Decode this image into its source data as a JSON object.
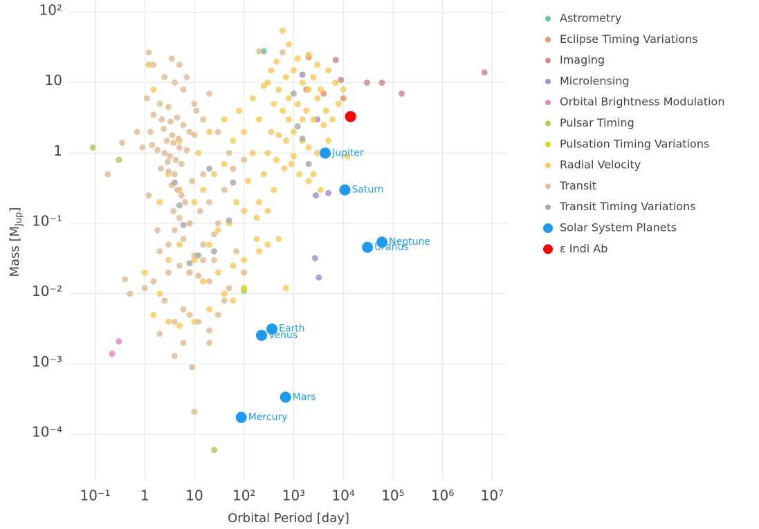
{
  "chart_data": {
    "type": "scatter",
    "xlabel": "Orbital Period [day]",
    "ylabel_parts": [
      "Mass [M",
      "Jup",
      "]"
    ],
    "xscale": "log",
    "yscale": "log",
    "grid": true,
    "legend": "right",
    "xlim": [
      0.03,
      20000000
    ],
    "ylim": [
      2.2e-05,
      150
    ],
    "xticks": [
      {
        "value": 0.1,
        "label": "10⁻¹"
      },
      1,
      10,
      {
        "value": 100,
        "label": "10²"
      },
      {
        "value": 1000,
        "label": "10³"
      },
      {
        "value": 10000,
        "label": "10⁴"
      },
      {
        "value": 100000,
        "label": "10⁵"
      },
      {
        "value": 1000000,
        "label": "10⁶"
      },
      {
        "value": 10000000,
        "label": "10⁷"
      }
    ],
    "yticks": [
      {
        "value": 0.0001,
        "label": "10⁻⁴"
      },
      {
        "value": 0.001,
        "label": "10⁻³"
      },
      {
        "value": 0.01,
        "label": "10⁻²"
      },
      {
        "value": 0.1,
        "label": "10⁻¹"
      },
      1,
      10,
      {
        "value": 100,
        "label": "10²"
      }
    ],
    "series": [
      {
        "name": "Astrometry",
        "color": "#66c2a5",
        "x": [
          250
        ],
        "values": [
          28
        ]
      },
      {
        "name": "Eclipse Timing Variations",
        "color": "#e8936a",
        "x": [
          2000,
          4000,
          10000,
          1800
        ],
        "values": [
          23,
          7,
          6,
          8
        ]
      },
      {
        "name": "Imaging",
        "color": "#c98a8f",
        "x": [
          7000,
          30000,
          60000,
          150000,
          7000000,
          9000
        ],
        "values": [
          21,
          10,
          10,
          7,
          14,
          11
        ]
      },
      {
        "name": "Microlensing",
        "color": "#a593c8",
        "x": [
          2800,
          5000,
          2700,
          3200,
          1500,
          3000
        ],
        "values": [
          0.25,
          0.27,
          0.032,
          0.017,
          13,
          3
        ]
      },
      {
        "name": "Orbital Brightness Modulation",
        "color": "#e08bc0",
        "x": [
          0.22,
          0.3
        ],
        "values": [
          0.0014,
          0.0021
        ]
      },
      {
        "name": "Pulsar Timing",
        "color": "#a5d05a",
        "x": [
          0.09,
          0.3,
          25,
          100
        ],
        "values": [
          1.2,
          0.8,
          6e-05,
          0.011
        ]
      },
      {
        "name": "Pulsation Timing Variations",
        "color": "#d9d62a",
        "x": [
          100
        ],
        "values": [
          0.012
        ]
      },
      {
        "name": "Radial Velocity",
        "color": "#f5cd5f",
        "x": [
          300,
          500,
          700,
          1000,
          1500,
          2000,
          3000,
          400,
          600,
          800,
          1200,
          1800,
          2500,
          4000,
          350,
          500,
          700,
          1000,
          1500,
          2000,
          3000,
          5000,
          300,
          450,
          650,
          900,
          1300,
          2000,
          3500,
          250,
          150,
          100,
          80,
          60,
          200,
          150,
          250,
          450,
          600,
          800,
          1200,
          2000,
          3000,
          5000,
          7000,
          10000,
          8000,
          6000,
          400,
          200,
          100,
          50,
          30,
          20,
          10,
          8,
          15,
          30,
          60,
          100,
          200,
          300,
          500,
          700,
          60,
          40,
          20,
          10,
          5,
          3,
          1.5,
          2,
          3,
          5,
          8,
          10,
          5,
          3,
          2,
          1,
          15,
          25,
          40,
          70,
          120,
          180,
          300,
          1.2,
          1.5,
          5,
          20,
          40,
          12,
          1000,
          1500,
          2500,
          3500,
          4500,
          800,
          350,
          180,
          2500,
          12000
        ],
        "values": [
          10,
          8,
          12,
          15,
          10,
          8,
          6,
          5,
          4,
          3,
          5,
          4,
          3,
          2.5,
          2,
          1.8,
          1.5,
          2,
          1.5,
          1.2,
          1,
          1.5,
          1,
          0.8,
          0.6,
          0.7,
          0.5,
          0.4,
          0.3,
          0.5,
          1,
          2,
          4,
          1.5,
          3,
          6,
          9,
          20,
          55,
          35,
          22,
          25,
          18,
          15,
          10,
          8,
          5,
          3,
          0.3,
          0.2,
          0.15,
          0.1,
          0.08,
          0.05,
          0.03,
          0.02,
          0.015,
          0.02,
          0.025,
          0.03,
          0.04,
          0.05,
          0.06,
          0.012,
          0.008,
          0.01,
          0.006,
          0.004,
          0.0035,
          0.004,
          0.005,
          0.01,
          0.03,
          0.05,
          0.1,
          0.2,
          0.3,
          0.5,
          0.2,
          0.02,
          0.3,
          0.5,
          0.7,
          0.2,
          0.4,
          0.12,
          0.15,
          18,
          8,
          1.5,
          2,
          3,
          1,
          0.9,
          3,
          12,
          8,
          4,
          6,
          15,
          0.06,
          0.5,
          0.9
        ]
      },
      {
        "name": "Transit",
        "color": "#dfc09a",
        "x": [
          1.2,
          1.5,
          3.5,
          5,
          2.5,
          4,
          6,
          1.1,
          2,
          3,
          1.5,
          2.2,
          3.3,
          4.5,
          6,
          8,
          10,
          1.3,
          2.8,
          3.8,
          5,
          7,
          1.8,
          2.5,
          3.2,
          4.2,
          5.5,
          2.1,
          3,
          4,
          1.4,
          2.4,
          3.6,
          4.8,
          2.9,
          3.5,
          4.5,
          5.5,
          6.5,
          3.8,
          5,
          8,
          4,
          6,
          3,
          2,
          10,
          15,
          5,
          8,
          12,
          20,
          3,
          1.5,
          1,
          0.5,
          0.4,
          2.5,
          6,
          4,
          8,
          12,
          20,
          2,
          6,
          4,
          9,
          10,
          20,
          30,
          40,
          50,
          15,
          25,
          30,
          20,
          40,
          15,
          50,
          30,
          60,
          100,
          0.18,
          0.35,
          0.7,
          0.9,
          1.2,
          1.8,
          10,
          20,
          15,
          200,
          600,
          7,
          11,
          9,
          13,
          25,
          70,
          100
        ],
        "values": [
          27,
          18,
          22,
          18,
          12,
          10,
          8,
          6,
          5,
          4.5,
          3.5,
          3,
          2.8,
          3.2,
          2.5,
          2,
          1.8,
          2,
          1.5,
          1.4,
          1.2,
          1.1,
          1.1,
          1,
          0.9,
          0.8,
          0.7,
          0.6,
          0.55,
          0.5,
          1.3,
          2.2,
          1.8,
          1.6,
          0.75,
          0.35,
          0.3,
          0.25,
          0.2,
          0.15,
          0.12,
          0.1,
          0.08,
          0.06,
          0.05,
          0.04,
          0.035,
          0.03,
          0.025,
          0.02,
          0.018,
          0.015,
          0.02,
          0.015,
          0.012,
          0.01,
          0.016,
          0.008,
          0.006,
          0.004,
          0.005,
          0.004,
          0.003,
          0.0027,
          0.002,
          0.0013,
          0.0009,
          0.00021,
          0.002,
          0.005,
          0.008,
          0.012,
          0.05,
          0.03,
          0.1,
          0.2,
          0.3,
          0.5,
          1,
          2,
          0.6,
          0.8,
          0.5,
          1.4,
          2,
          1.2,
          0.25,
          0.08,
          5,
          7,
          3,
          28,
          27,
          12,
          4,
          0.4,
          0.15,
          0.07,
          0.04,
          0.02
        ]
      },
      {
        "name": "Transit Timing Variations",
        "color": "#aaaaaa",
        "x": [
          4,
          5,
          6,
          8,
          12,
          20,
          25,
          50,
          60,
          1000,
          1200,
          1500,
          2000
        ],
        "values": [
          0.38,
          0.18,
          0.095,
          0.027,
          0.035,
          0.6,
          0.04,
          0.11,
          0.38,
          7,
          2.4,
          1.6,
          0.7
        ]
      },
      {
        "name": "Solar System Planets",
        "color": "#1e9bf0",
        "marker_size": "large",
        "x": [
          88,
          225,
          365,
          687,
          4333,
          10759,
          30687,
          60190
        ],
        "values": [
          0.000174,
          0.00256,
          0.00315,
          0.000338,
          1,
          0.299,
          0.0457,
          0.054
        ],
        "labels": [
          "Mercury",
          "Venus",
          "Earth",
          "Mars",
          "Jupiter",
          "Saturn",
          "Uranus",
          "Neptune"
        ]
      },
      {
        "name": "ε Indi Ab",
        "color": "#ff0000",
        "marker_size": "large",
        "x": [
          14000
        ],
        "values": [
          3.3
        ]
      }
    ]
  }
}
